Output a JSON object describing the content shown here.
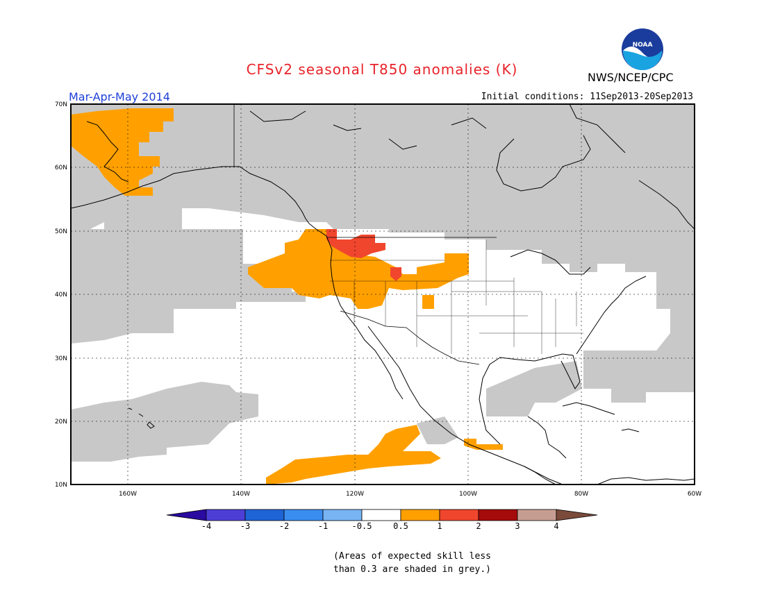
{
  "header": {
    "title": "CFSv2 seasonal T850 anomalies (K)",
    "agency": "NWS/NCEP/CPC",
    "season": "Mar-Apr-May 2014",
    "initial_conditions": "Initial conditions: 11Sep2013-20Sep2013",
    "logo_text": "NOAA"
  },
  "map": {
    "lat_labels": [
      "70N",
      "60N",
      "50N",
      "40N",
      "30N",
      "20N",
      "10N"
    ],
    "lon_labels": [
      "160W",
      "140W",
      "120W",
      "100W",
      "80W",
      "60W"
    ],
    "colors": {
      "grey": "#c8c8c8",
      "orange": "#ffa000",
      "red": "#f0462d",
      "coast": "#000000"
    }
  },
  "colorbar": {
    "labels": [
      "-4",
      "-3",
      "-2",
      "-1",
      "-0.5",
      "0.5",
      "1",
      "2",
      "3",
      "4"
    ],
    "colors": [
      "#2a0aa0",
      "#4d3fd6",
      "#1f64d6",
      "#3a8df0",
      "#78b4f3",
      "#ffffff",
      "#ffa000",
      "#f0462d",
      "#a50b0b",
      "#c69e91",
      "#7a4a3a"
    ]
  },
  "note": {
    "line1": "(Areas of expected skill less",
    "line2": "than 0.3 are shaded in grey.)"
  }
}
